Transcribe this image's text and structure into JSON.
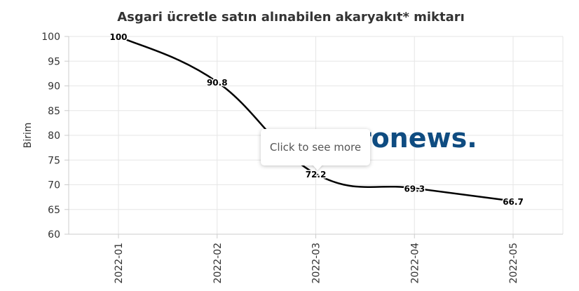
{
  "chart_data": {
    "type": "line",
    "title": "Asgari ücretle satın alınabilen akaryakıt* miktarı",
    "ylabel": "Birim",
    "xlabel": "",
    "categories": [
      "2022-01",
      "2022-02",
      "2022-03",
      "2022-04",
      "2022-05"
    ],
    "series": [
      {
        "values": [
          100,
          90.8,
          72.2,
          69.3,
          66.7
        ],
        "color": "#000000"
      }
    ],
    "data_labels": [
      "100",
      "90.8",
      "72.2",
      "69.3",
      "66.7"
    ],
    "ylim": [
      60,
      100
    ],
    "yticks": [
      60,
      65,
      70,
      75,
      80,
      85,
      90,
      95,
      100
    ],
    "grid": true,
    "legend": "none"
  },
  "watermark": {
    "text": "euronews.",
    "color": "#0f4c81"
  },
  "tooltip": {
    "text": "Click to see more"
  }
}
